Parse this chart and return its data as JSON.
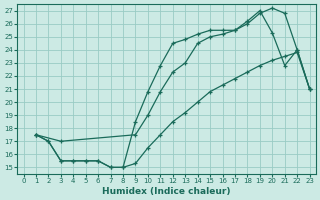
{
  "xlabel": "Humidex (Indice chaleur)",
  "bg_color": "#cceae4",
  "grid_color": "#99ccc4",
  "line_color": "#1a6b5a",
  "xlim": [
    -0.5,
    23.5
  ],
  "ylim": [
    14.5,
    27.5
  ],
  "xticks": [
    0,
    1,
    2,
    3,
    4,
    5,
    6,
    7,
    8,
    9,
    10,
    11,
    12,
    13,
    14,
    15,
    16,
    17,
    18,
    19,
    20,
    21,
    22,
    23
  ],
  "yticks": [
    15,
    16,
    17,
    18,
    19,
    20,
    21,
    22,
    23,
    24,
    25,
    26,
    27
  ],
  "line1_x": [
    1,
    3,
    9,
    10,
    11,
    12,
    13,
    14,
    15,
    16,
    17,
    18,
    19,
    20,
    21,
    22,
    23
  ],
  "line1_y": [
    17.5,
    17.0,
    17.5,
    19.0,
    20.8,
    22.3,
    23.0,
    24.5,
    25.0,
    25.2,
    25.5,
    26.0,
    26.8,
    27.2,
    26.8,
    24.0,
    21.0
  ],
  "line2_x": [
    1,
    2,
    3,
    4,
    5,
    6,
    7,
    8,
    9,
    10,
    11,
    12,
    13,
    14,
    15,
    16,
    17,
    18,
    19,
    20,
    21,
    22,
    23
  ],
  "line2_y": [
    17.5,
    17.0,
    15.5,
    15.5,
    15.5,
    15.5,
    15.0,
    15.0,
    18.5,
    20.8,
    22.8,
    24.5,
    24.8,
    25.2,
    25.5,
    25.5,
    25.5,
    26.2,
    27.0,
    25.3,
    22.8,
    24.0,
    21.0
  ],
  "line3_x": [
    1,
    2,
    3,
    4,
    5,
    6,
    7,
    8,
    9,
    10,
    11,
    12,
    13,
    14,
    15,
    16,
    17,
    18,
    19,
    20,
    21,
    22,
    23
  ],
  "line3_y": [
    17.5,
    17.0,
    15.5,
    15.5,
    15.5,
    15.5,
    15.0,
    15.0,
    15.3,
    16.5,
    17.5,
    18.5,
    19.2,
    20.0,
    20.8,
    21.3,
    21.8,
    22.3,
    22.8,
    23.2,
    23.5,
    23.8,
    21.0
  ]
}
